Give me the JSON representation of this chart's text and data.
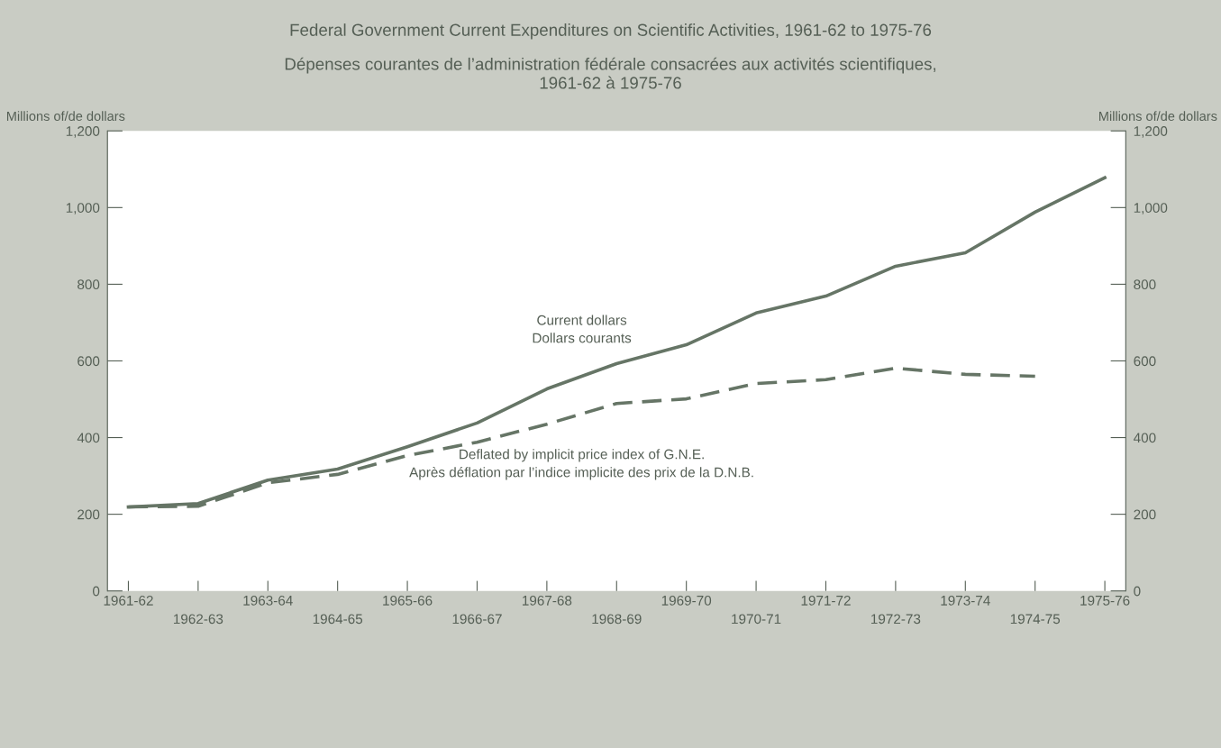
{
  "chart_data": {
    "type": "line",
    "title": "Federal Government Current Expenditures on Scientific Activities, 1961-62 to 1975-76",
    "subtitle": "Dépenses courantes de l’administration fédérale consacrées aux activités scientifiques,\n1961-62 à 1975-76",
    "ylabel": "Millions of/de dollars",
    "y2label": "Millions of/de dollars",
    "categories": [
      "1961-62",
      "1962-63",
      "1963-64",
      "1964-65",
      "1965-66",
      "1966-67",
      "1967-68",
      "1968-69",
      "1969-70",
      "1970-71",
      "1971-72",
      "1972-73",
      "1973-74",
      "1974-75",
      "1975-76"
    ],
    "series": [
      {
        "name": "Current dollars\nDollars courants",
        "color": "#667566",
        "line_style": "solid",
        "values": [
          219,
          228,
          289,
          318,
          376,
          438,
          527,
          593,
          642,
          725,
          769,
          847,
          882,
          988,
          1078
        ]
      },
      {
        "name": "Deflated by implicit price index of G.N.E.\nAprès déflation par l’indice implicite des prix de la D.N.B.",
        "color": "#667566",
        "line_style": "dashed",
        "values": [
          219,
          221,
          282,
          304,
          353,
          388,
          435,
          489,
          501,
          541,
          551,
          581,
          565,
          560,
          null
        ]
      }
    ],
    "ylim": [
      0,
      1200
    ],
    "yticks": [
      0,
      200,
      400,
      600,
      800,
      {
        "value": 1000,
        "label": "1,000"
      },
      {
        "value": 1200,
        "label": "1,200"
      }
    ],
    "y2lim": [
      0,
      1200
    ],
    "y2ticks": [
      0,
      200,
      400,
      600,
      800,
      {
        "value": 1000,
        "label": "1,000"
      },
      {
        "value": 1200,
        "label": "1,200"
      }
    ],
    "grid": false,
    "legend": false,
    "marker": "none"
  }
}
